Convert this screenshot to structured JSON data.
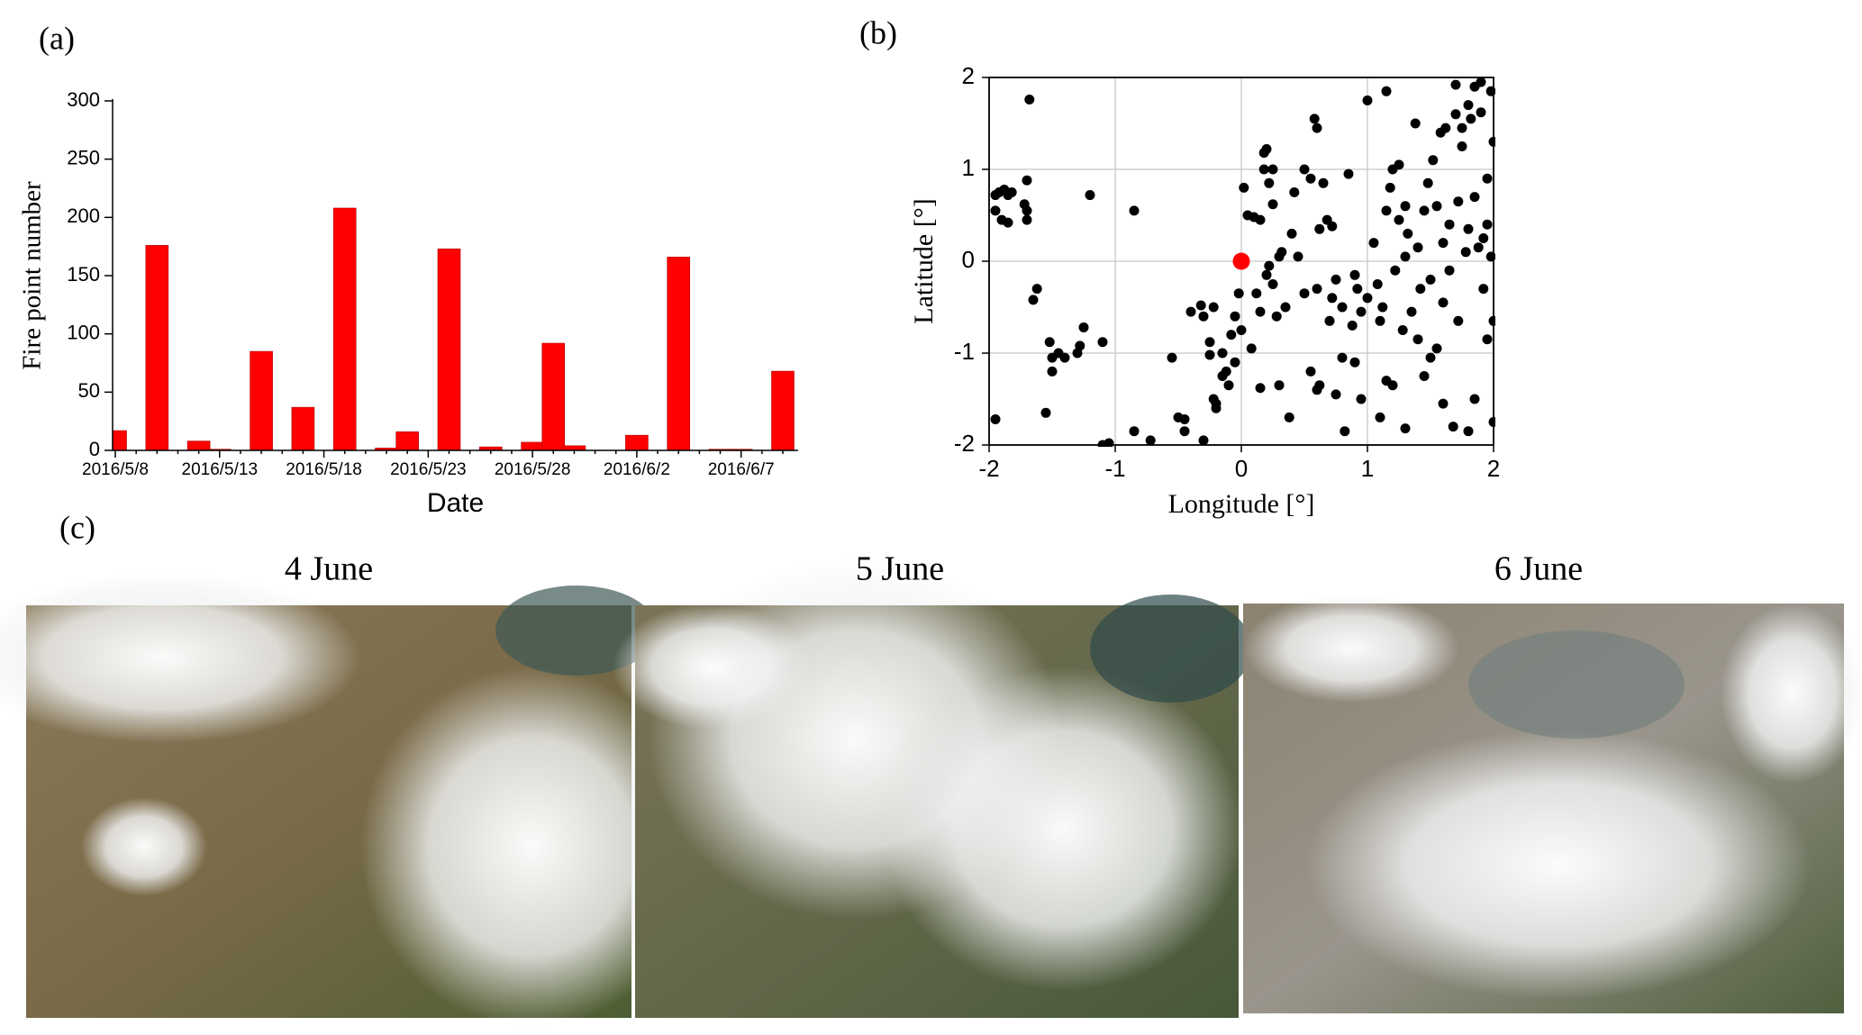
{
  "chart_data": [
    {
      "type": "bar",
      "panel": "(a)",
      "xlabel": "Date",
      "ylabel": "Fire point number",
      "color": "#ff0000",
      "categories": [
        "2016/5/8",
        null,
        null,
        null,
        null,
        "2016/5/13",
        null,
        null,
        null,
        null,
        "2016/5/18",
        null,
        null,
        null,
        null,
        "2016/5/23",
        null,
        null,
        null,
        null,
        "2016/5/28",
        null,
        null,
        null,
        null,
        "2016/6/2",
        null,
        null,
        null,
        null,
        "2016/6/7",
        null,
        null
      ],
      "values": [
        17,
        0,
        176,
        0,
        8,
        1,
        0,
        85,
        0,
        37,
        0,
        208,
        0,
        2,
        16,
        0,
        173,
        0,
        3,
        0,
        7,
        92,
        4,
        0,
        0,
        13,
        0,
        166,
        0,
        1,
        1,
        0,
        68
      ],
      "ylim": [
        0,
        300
      ],
      "yticks": [
        0,
        50,
        100,
        150,
        200,
        250,
        300
      ]
    },
    {
      "type": "scatter",
      "panel": "(b)",
      "xlabel": "Longitude [°]",
      "ylabel": "Latitude [°]",
      "xlim": [
        -2,
        2
      ],
      "ylim": [
        -2,
        2
      ],
      "xticks": [
        -2,
        -1,
        0,
        1,
        2
      ],
      "yticks": [
        -2,
        -1,
        0,
        1,
        2
      ],
      "grid": true,
      "series": [
        {
          "color": "#000000",
          "x": [
            -1.95,
            -1.92,
            -1.88,
            -1.85,
            -1.82,
            -1.95,
            -1.9,
            -1.85,
            -1.72,
            -1.7,
            -1.7,
            -1.7,
            -1.68,
            -1.65,
            -1.62,
            -1.95,
            -1.52,
            -1.55,
            -1.5,
            -1.5,
            -1.45,
            -1.4,
            -1.3,
            -1.28,
            -1.25,
            -1.1,
            -1.2,
            -0.85,
            -1.1,
            -1.05,
            -0.85,
            -0.72,
            -0.55,
            -0.5,
            -0.45,
            -0.45,
            -0.4,
            -0.32,
            -0.3,
            -0.3,
            -0.22,
            -0.25,
            -0.25,
            -0.22,
            -0.2,
            -0.2,
            -0.15,
            -0.15,
            -0.12,
            -0.1,
            -0.08,
            -0.05,
            -0.05,
            -0.02,
            0,
            0.02,
            0.05,
            0.08,
            0.1,
            0.12,
            0.15,
            0.15,
            0.15,
            0.18,
            0.18,
            0.2,
            0.2,
            0.22,
            0.22,
            0.25,
            0.25,
            0.25,
            0.28,
            0.3,
            0.3,
            0.32,
            0.35,
            0.38,
            0.4,
            0.42,
            0.45,
            0.5,
            0.5,
            0.55,
            0.55,
            0.58,
            0.6,
            0.6,
            0.62,
            0.62,
            0.65,
            0.68,
            0.7,
            0.72,
            0.72,
            0.75,
            0.75,
            0.8,
            0.8,
            0.82,
            0.85,
            0.88,
            0.9,
            0.92,
            0.95,
            0.95,
            1.0,
            1.0,
            1.05,
            1.08,
            1.1,
            1.12,
            1.15,
            1.15,
            1.18,
            1.2,
            1.2,
            1.22,
            1.25,
            1.25,
            1.28,
            1.3,
            1.3,
            1.32,
            1.35,
            1.38,
            1.4,
            1.4,
            1.42,
            1.45,
            1.48,
            1.5,
            1.5,
            1.52,
            1.55,
            1.55,
            1.58,
            1.6,
            1.6,
            1.62,
            1.65,
            1.65,
            1.68,
            1.7,
            1.72,
            1.72,
            1.75,
            1.75,
            1.78,
            1.8,
            1.8,
            1.8,
            1.82,
            1.85,
            1.85,
            1.85,
            1.88,
            1.9,
            1.9,
            1.92,
            1.92,
            1.95,
            1.95,
            1.95,
            1.98,
            1.98,
            2.0,
            2.0,
            2.0,
            1.7,
            1.3,
            1.15,
            1.6,
            1.45,
            1.1,
            0.6,
            0.9
          ],
          "values": [
            0.72,
            0.75,
            0.78,
            0.72,
            0.75,
            0.55,
            0.45,
            0.42,
            0.62,
            0.55,
            0.45,
            0.88,
            1.76,
            -0.42,
            -0.3,
            -1.72,
            -0.88,
            -1.65,
            -1.2,
            -1.05,
            -1.0,
            -1.05,
            -1.0,
            -0.92,
            -0.72,
            -0.88,
            0.72,
            0.55,
            -2.0,
            -1.98,
            -1.85,
            -1.95,
            -1.05,
            -1.7,
            -1.72,
            -1.85,
            -0.55,
            -0.48,
            -0.6,
            -1.95,
            -0.5,
            -0.88,
            -1.02,
            -1.5,
            -1.55,
            -1.6,
            -1.25,
            -1.0,
            -1.2,
            -1.35,
            -0.8,
            -0.6,
            -1.1,
            -0.35,
            -0.75,
            0.8,
            0.5,
            -0.95,
            0.48,
            -0.35,
            0.45,
            -0.55,
            -1.38,
            1.0,
            1.18,
            1.22,
            -0.15,
            0.85,
            -0.05,
            1.0,
            0.62,
            -0.25,
            -0.6,
            0.05,
            -1.35,
            0.1,
            -0.5,
            -1.7,
            0.3,
            0.75,
            0.05,
            1.0,
            -0.35,
            0.9,
            -1.2,
            1.55,
            1.45,
            -0.3,
            0.35,
            -1.35,
            0.85,
            0.45,
            -0.65,
            0.38,
            -0.4,
            -0.2,
            -1.45,
            -0.5,
            -1.05,
            -1.85,
            0.95,
            -0.7,
            -0.15,
            -0.3,
            -0.55,
            -1.5,
            1.75,
            -0.4,
            0.2,
            -0.25,
            -0.65,
            -0.5,
            1.85,
            -1.3,
            0.8,
            1.0,
            -1.35,
            -0.1,
            1.05,
            0.45,
            -0.75,
            0.6,
            -1.82,
            0.3,
            -0.55,
            1.5,
            0.15,
            -0.85,
            -0.3,
            0.55,
            0.85,
            -0.2,
            -1.05,
            1.1,
            0.6,
            -0.95,
            1.4,
            0.2,
            -1.55,
            1.45,
            0.4,
            -0.1,
            -1.8,
            1.6,
            0.65,
            -0.65,
            1.45,
            1.25,
            0.1,
            1.7,
            0.35,
            -1.85,
            1.55,
            1.9,
            0.7,
            -1.5,
            0.15,
            1.95,
            1.62,
            0.25,
            -0.3,
            0.9,
            0.4,
            -0.85,
            1.85,
            0.05,
            1.3,
            -0.65,
            -1.75,
            1.92,
            0.05,
            0.55,
            -0.45,
            -1.25,
            -1.7,
            -1.4,
            -1.1
          ]
        },
        {
          "color": "#ff0000",
          "x": [
            0
          ],
          "values": [
            0
          ]
        }
      ]
    }
  ],
  "figure_c": {
    "panel": "(c)",
    "images": [
      {
        "caption": "4 June"
      },
      {
        "caption": "5 June"
      },
      {
        "caption": "6 June"
      }
    ]
  }
}
